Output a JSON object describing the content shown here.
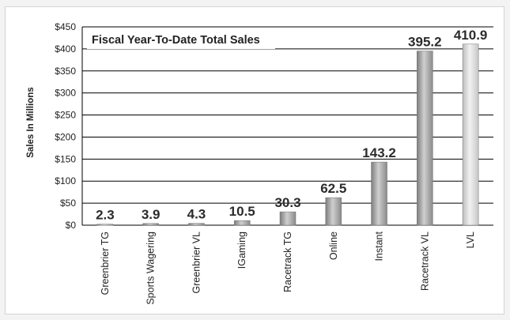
{
  "chart_data": {
    "type": "bar",
    "title": "Fiscal Year-To-Date Total Sales",
    "ylabel": "Sales In Millions",
    "xlabel": "",
    "ylim": [
      0,
      450
    ],
    "yticks": [
      0,
      50,
      100,
      150,
      200,
      250,
      300,
      350,
      400,
      450
    ],
    "ytick_labels": [
      "$0",
      "$50",
      "$100",
      "$150",
      "$200",
      "$250",
      "$300",
      "$350",
      "$400",
      "$450"
    ],
    "categories": [
      "Greenbrier TG",
      "Sports Wagering",
      "Greenbrier VL",
      "IGaming",
      "Racetrack TG",
      "Online",
      "Instant",
      "Racetrack VL",
      "LVL"
    ],
    "values": [
      2.3,
      3.9,
      4.3,
      10.5,
      30.3,
      62.5,
      143.2,
      395.2,
      410.9
    ],
    "data_labels": [
      "2.3",
      "3.9",
      "4.3",
      "10.5",
      "30.3",
      "62.5",
      "143.2",
      "395.2",
      "410.9"
    ],
    "grid": true,
    "legend": "none",
    "colors": {
      "bar": "#a9a9a9",
      "bar_highlight": "#dcdcdc",
      "bar_last": "#e6e6e6",
      "grid": "#000000"
    }
  }
}
